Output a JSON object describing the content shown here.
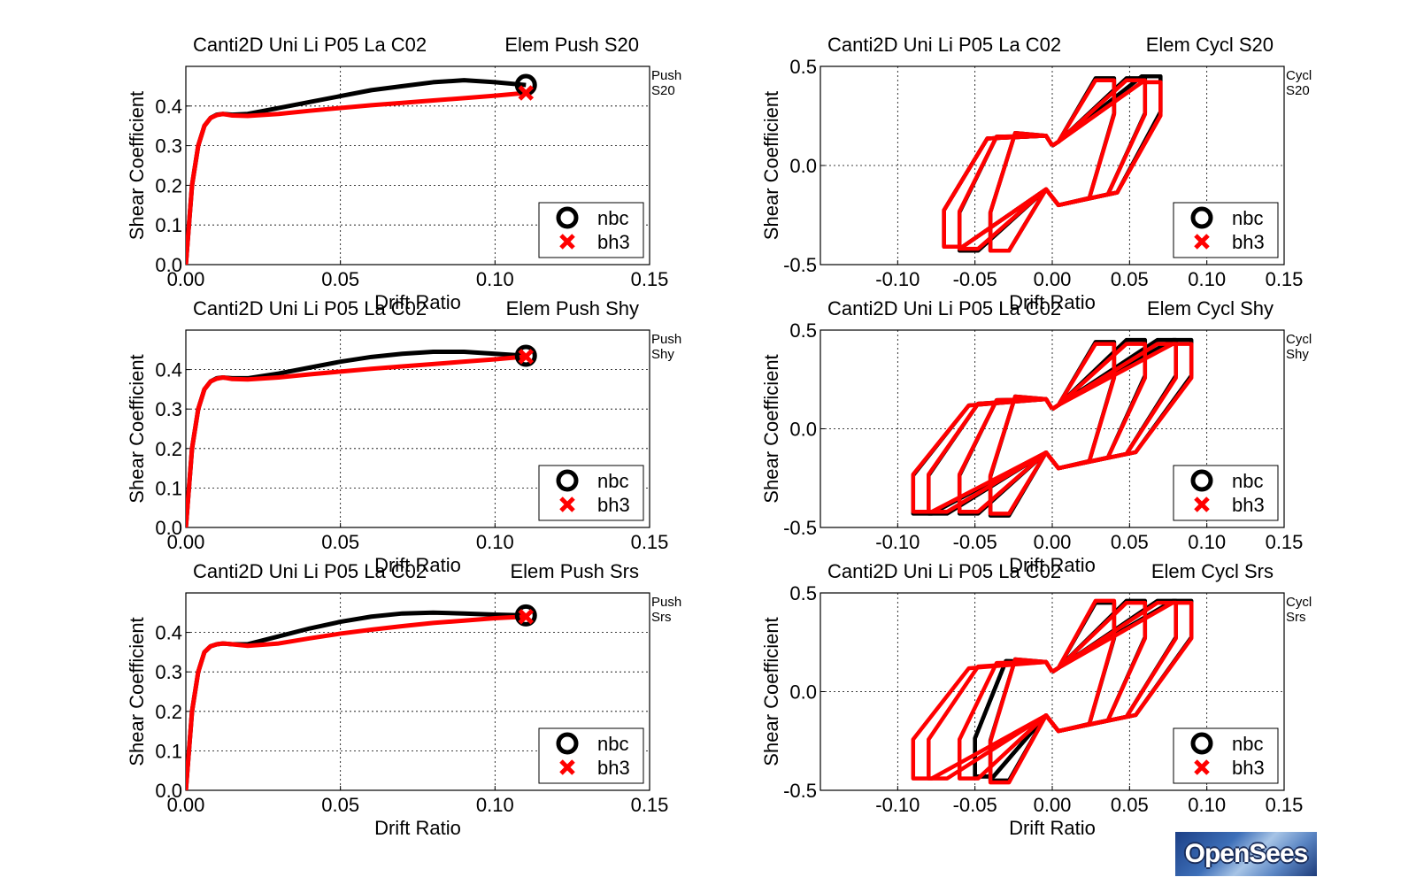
{
  "chart_data": [
    {
      "type": "line",
      "title_left": "Canti2D Uni Li P05 La C02",
      "title_right": "Elem Push S20",
      "side_label": [
        "Push",
        "S20"
      ],
      "xlabel": "Drift Ratio",
      "ylabel": "Shear Coefficient",
      "xlim": [
        0,
        0.15
      ],
      "ylim": [
        0,
        0.5
      ],
      "xticks": [
        "0.00",
        "0.05",
        "0.10",
        "0.15"
      ],
      "yticks": [
        "0.0",
        "0.1",
        "0.2",
        "0.3",
        "0.4"
      ],
      "grid": true,
      "legend": "lower-right",
      "series": [
        {
          "name": "nbc",
          "color": "#000000",
          "marker": "circle",
          "x": [
            0,
            0.002,
            0.004,
            0.006,
            0.008,
            0.01,
            0.012,
            0.015,
            0.02,
            0.03,
            0.04,
            0.05,
            0.06,
            0.07,
            0.08,
            0.09,
            0.1,
            0.11
          ],
          "y": [
            0,
            0.2,
            0.3,
            0.35,
            0.37,
            0.378,
            0.38,
            0.378,
            0.38,
            0.395,
            0.41,
            0.425,
            0.44,
            0.45,
            0.46,
            0.465,
            0.46,
            0.453
          ]
        },
        {
          "name": "bh3",
          "color": "#ff0000",
          "marker": "x",
          "x": [
            0,
            0.002,
            0.004,
            0.006,
            0.008,
            0.01,
            0.012,
            0.015,
            0.02,
            0.03,
            0.04,
            0.05,
            0.06,
            0.07,
            0.08,
            0.09,
            0.1,
            0.11
          ],
          "y": [
            0,
            0.2,
            0.3,
            0.35,
            0.37,
            0.377,
            0.38,
            0.376,
            0.375,
            0.38,
            0.388,
            0.395,
            0.402,
            0.408,
            0.414,
            0.42,
            0.426,
            0.433
          ]
        }
      ]
    },
    {
      "type": "line",
      "title_left": "Canti2D Uni Li P05 La C02",
      "title_right": "Elem Cycl S20",
      "side_label": [
        "Cycl",
        "S20"
      ],
      "xlabel": "Drift Ratio",
      "ylabel": "Shear Coefficient",
      "xlim": [
        -0.15,
        0.15
      ],
      "ylim": [
        -0.5,
        0.5
      ],
      "xticks": [
        "-0.10",
        "-0.05",
        "0.00",
        "0.05",
        "0.10",
        "0.15"
      ],
      "yticks": [
        "-0.5",
        "0.0",
        "0.5"
      ],
      "grid": true,
      "legend": "lower-right",
      "cycle_amplitudes": [
        0.04,
        0.06,
        0.08,
        0.1
      ],
      "series": [
        {
          "name": "nbc",
          "color": "#000000",
          "marker": "circle",
          "peak_pos": [
            0.0,
            0.0
          ],
          "loops": [
            [
              0.11,
              0.44
            ],
            [
              -0.11,
              -0.43
            ],
            [
              0.09,
              0.44
            ],
            [
              -0.09,
              -0.43
            ],
            [
              0.07,
              0.45
            ],
            [
              -0.07,
              -0.41
            ]
          ]
        },
        {
          "name": "bh3",
          "color": "#ff0000",
          "marker": "x",
          "peak_pos": [
            0.0,
            0.0
          ],
          "loops": [
            [
              0.11,
              0.43
            ],
            [
              -0.11,
              -0.43
            ],
            [
              0.09,
              0.43
            ],
            [
              -0.09,
              -0.42
            ],
            [
              0.07,
              0.42
            ],
            [
              -0.07,
              -0.41
            ]
          ]
        }
      ]
    },
    {
      "type": "line",
      "title_left": "Canti2D Uni Li P05 La C02",
      "title_right": "Elem Push Shy",
      "side_label": [
        "Push",
        "Shy"
      ],
      "xlabel": "Drift Ratio",
      "ylabel": "Shear Coefficient",
      "xlim": [
        0,
        0.15
      ],
      "ylim": [
        0,
        0.5
      ],
      "xticks": [
        "0.00",
        "0.05",
        "0.10",
        "0.15"
      ],
      "yticks": [
        "0.0",
        "0.1",
        "0.2",
        "0.3",
        "0.4"
      ],
      "grid": true,
      "legend": "lower-right",
      "series": [
        {
          "name": "nbc",
          "color": "#000000",
          "marker": "circle",
          "x": [
            0,
            0.002,
            0.004,
            0.006,
            0.008,
            0.01,
            0.012,
            0.015,
            0.02,
            0.03,
            0.04,
            0.05,
            0.06,
            0.07,
            0.08,
            0.09,
            0.1,
            0.11
          ],
          "y": [
            0,
            0.2,
            0.3,
            0.35,
            0.37,
            0.378,
            0.38,
            0.378,
            0.378,
            0.39,
            0.405,
            0.42,
            0.432,
            0.44,
            0.445,
            0.445,
            0.44,
            0.435
          ]
        },
        {
          "name": "bh3",
          "color": "#ff0000",
          "marker": "x",
          "x": [
            0,
            0.002,
            0.004,
            0.006,
            0.008,
            0.01,
            0.012,
            0.015,
            0.02,
            0.03,
            0.04,
            0.05,
            0.06,
            0.07,
            0.08,
            0.09,
            0.1,
            0.11
          ],
          "y": [
            0,
            0.2,
            0.3,
            0.35,
            0.37,
            0.377,
            0.38,
            0.376,
            0.375,
            0.38,
            0.388,
            0.395,
            0.402,
            0.408,
            0.414,
            0.42,
            0.426,
            0.433
          ]
        }
      ]
    },
    {
      "type": "line",
      "title_left": "Canti2D Uni Li P05 La C02",
      "title_right": "Elem Cycl Shy",
      "side_label": [
        "Cycl",
        "Shy"
      ],
      "xlabel": "Drift Ratio",
      "ylabel": "Shear Coefficient",
      "xlim": [
        -0.15,
        0.15
      ],
      "ylim": [
        -0.5,
        0.5
      ],
      "xticks": [
        "-0.10",
        "-0.05",
        "0.00",
        "0.05",
        "0.10",
        "0.15"
      ],
      "yticks": [
        "-0.5",
        "0.0",
        "0.5"
      ],
      "grid": true,
      "legend": "lower-right",
      "cycle_amplitudes": [
        0.04,
        0.06,
        0.08,
        0.1
      ],
      "series": [
        {
          "name": "nbc",
          "color": "#000000",
          "marker": "circle",
          "loops": [
            [
              0.11,
              0.44
            ],
            [
              -0.11,
              -0.44
            ],
            [
              0.09,
              0.45
            ],
            [
              -0.09,
              -0.43
            ]
          ]
        },
        {
          "name": "bh3",
          "color": "#ff0000",
          "marker": "x",
          "loops": [
            [
              0.11,
              0.43
            ],
            [
              -0.11,
              -0.43
            ],
            [
              0.09,
              0.43
            ],
            [
              -0.09,
              -0.42
            ]
          ]
        }
      ]
    },
    {
      "type": "line",
      "title_left": "Canti2D Uni Li P05 La C02",
      "title_right": "Elem Push Srs",
      "side_label": [
        "Push",
        "Srs"
      ],
      "xlabel": "Drift Ratio",
      "ylabel": "Shear Coefficient",
      "xlim": [
        0,
        0.15
      ],
      "ylim": [
        0,
        0.5
      ],
      "xticks": [
        "0.00",
        "0.05",
        "0.10",
        "0.15"
      ],
      "yticks": [
        "0.0",
        "0.1",
        "0.2",
        "0.3",
        "0.4"
      ],
      "grid": true,
      "legend": "lower-right",
      "series": [
        {
          "name": "nbc",
          "color": "#000000",
          "marker": "circle",
          "x": [
            0,
            0.002,
            0.004,
            0.006,
            0.008,
            0.01,
            0.012,
            0.015,
            0.02,
            0.03,
            0.04,
            0.05,
            0.06,
            0.07,
            0.08,
            0.09,
            0.1,
            0.11
          ],
          "y": [
            0,
            0.2,
            0.3,
            0.35,
            0.365,
            0.37,
            0.372,
            0.37,
            0.37,
            0.39,
            0.41,
            0.427,
            0.44,
            0.448,
            0.45,
            0.448,
            0.445,
            0.443
          ]
        },
        {
          "name": "bh3",
          "color": "#ff0000",
          "marker": "x",
          "x": [
            0,
            0.002,
            0.004,
            0.006,
            0.008,
            0.01,
            0.012,
            0.015,
            0.02,
            0.03,
            0.04,
            0.05,
            0.06,
            0.07,
            0.08,
            0.09,
            0.1,
            0.11
          ],
          "y": [
            0,
            0.2,
            0.3,
            0.35,
            0.365,
            0.37,
            0.372,
            0.37,
            0.366,
            0.372,
            0.385,
            0.397,
            0.407,
            0.416,
            0.424,
            0.43,
            0.436,
            0.44
          ]
        }
      ]
    },
    {
      "type": "line",
      "title_left": "Canti2D Uni Li P05 La C02",
      "title_right": "Elem Cycl Srs",
      "side_label": [
        "Cycl",
        "Srs"
      ],
      "xlabel": "Drift Ratio",
      "ylabel": "Shear Coefficient",
      "xlim": [
        -0.15,
        0.15
      ],
      "ylim": [
        -0.5,
        0.5
      ],
      "xticks": [
        "-0.10",
        "-0.05",
        "0.00",
        "0.05",
        "0.10",
        "0.15"
      ],
      "yticks": [
        "-0.5",
        "0.0",
        "0.5"
      ],
      "grid": true,
      "legend": "lower-right",
      "cycle_amplitudes": [
        0.04,
        0.06,
        0.08,
        0.1
      ],
      "series": [
        {
          "name": "nbc",
          "color": "#000000",
          "marker": "circle",
          "loops": [
            [
              0.11,
              0.45
            ],
            [
              -0.11,
              -0.45
            ],
            [
              0.09,
              0.46
            ],
            [
              -0.05,
              -0.43
            ]
          ]
        },
        {
          "name": "bh3",
          "color": "#ff0000",
          "marker": "x",
          "loops": [
            [
              0.11,
              0.46
            ],
            [
              -0.11,
              -0.46
            ],
            [
              0.09,
              0.45
            ],
            [
              -0.09,
              -0.44
            ]
          ]
        }
      ]
    }
  ],
  "logo": {
    "text": "OpenSees"
  }
}
